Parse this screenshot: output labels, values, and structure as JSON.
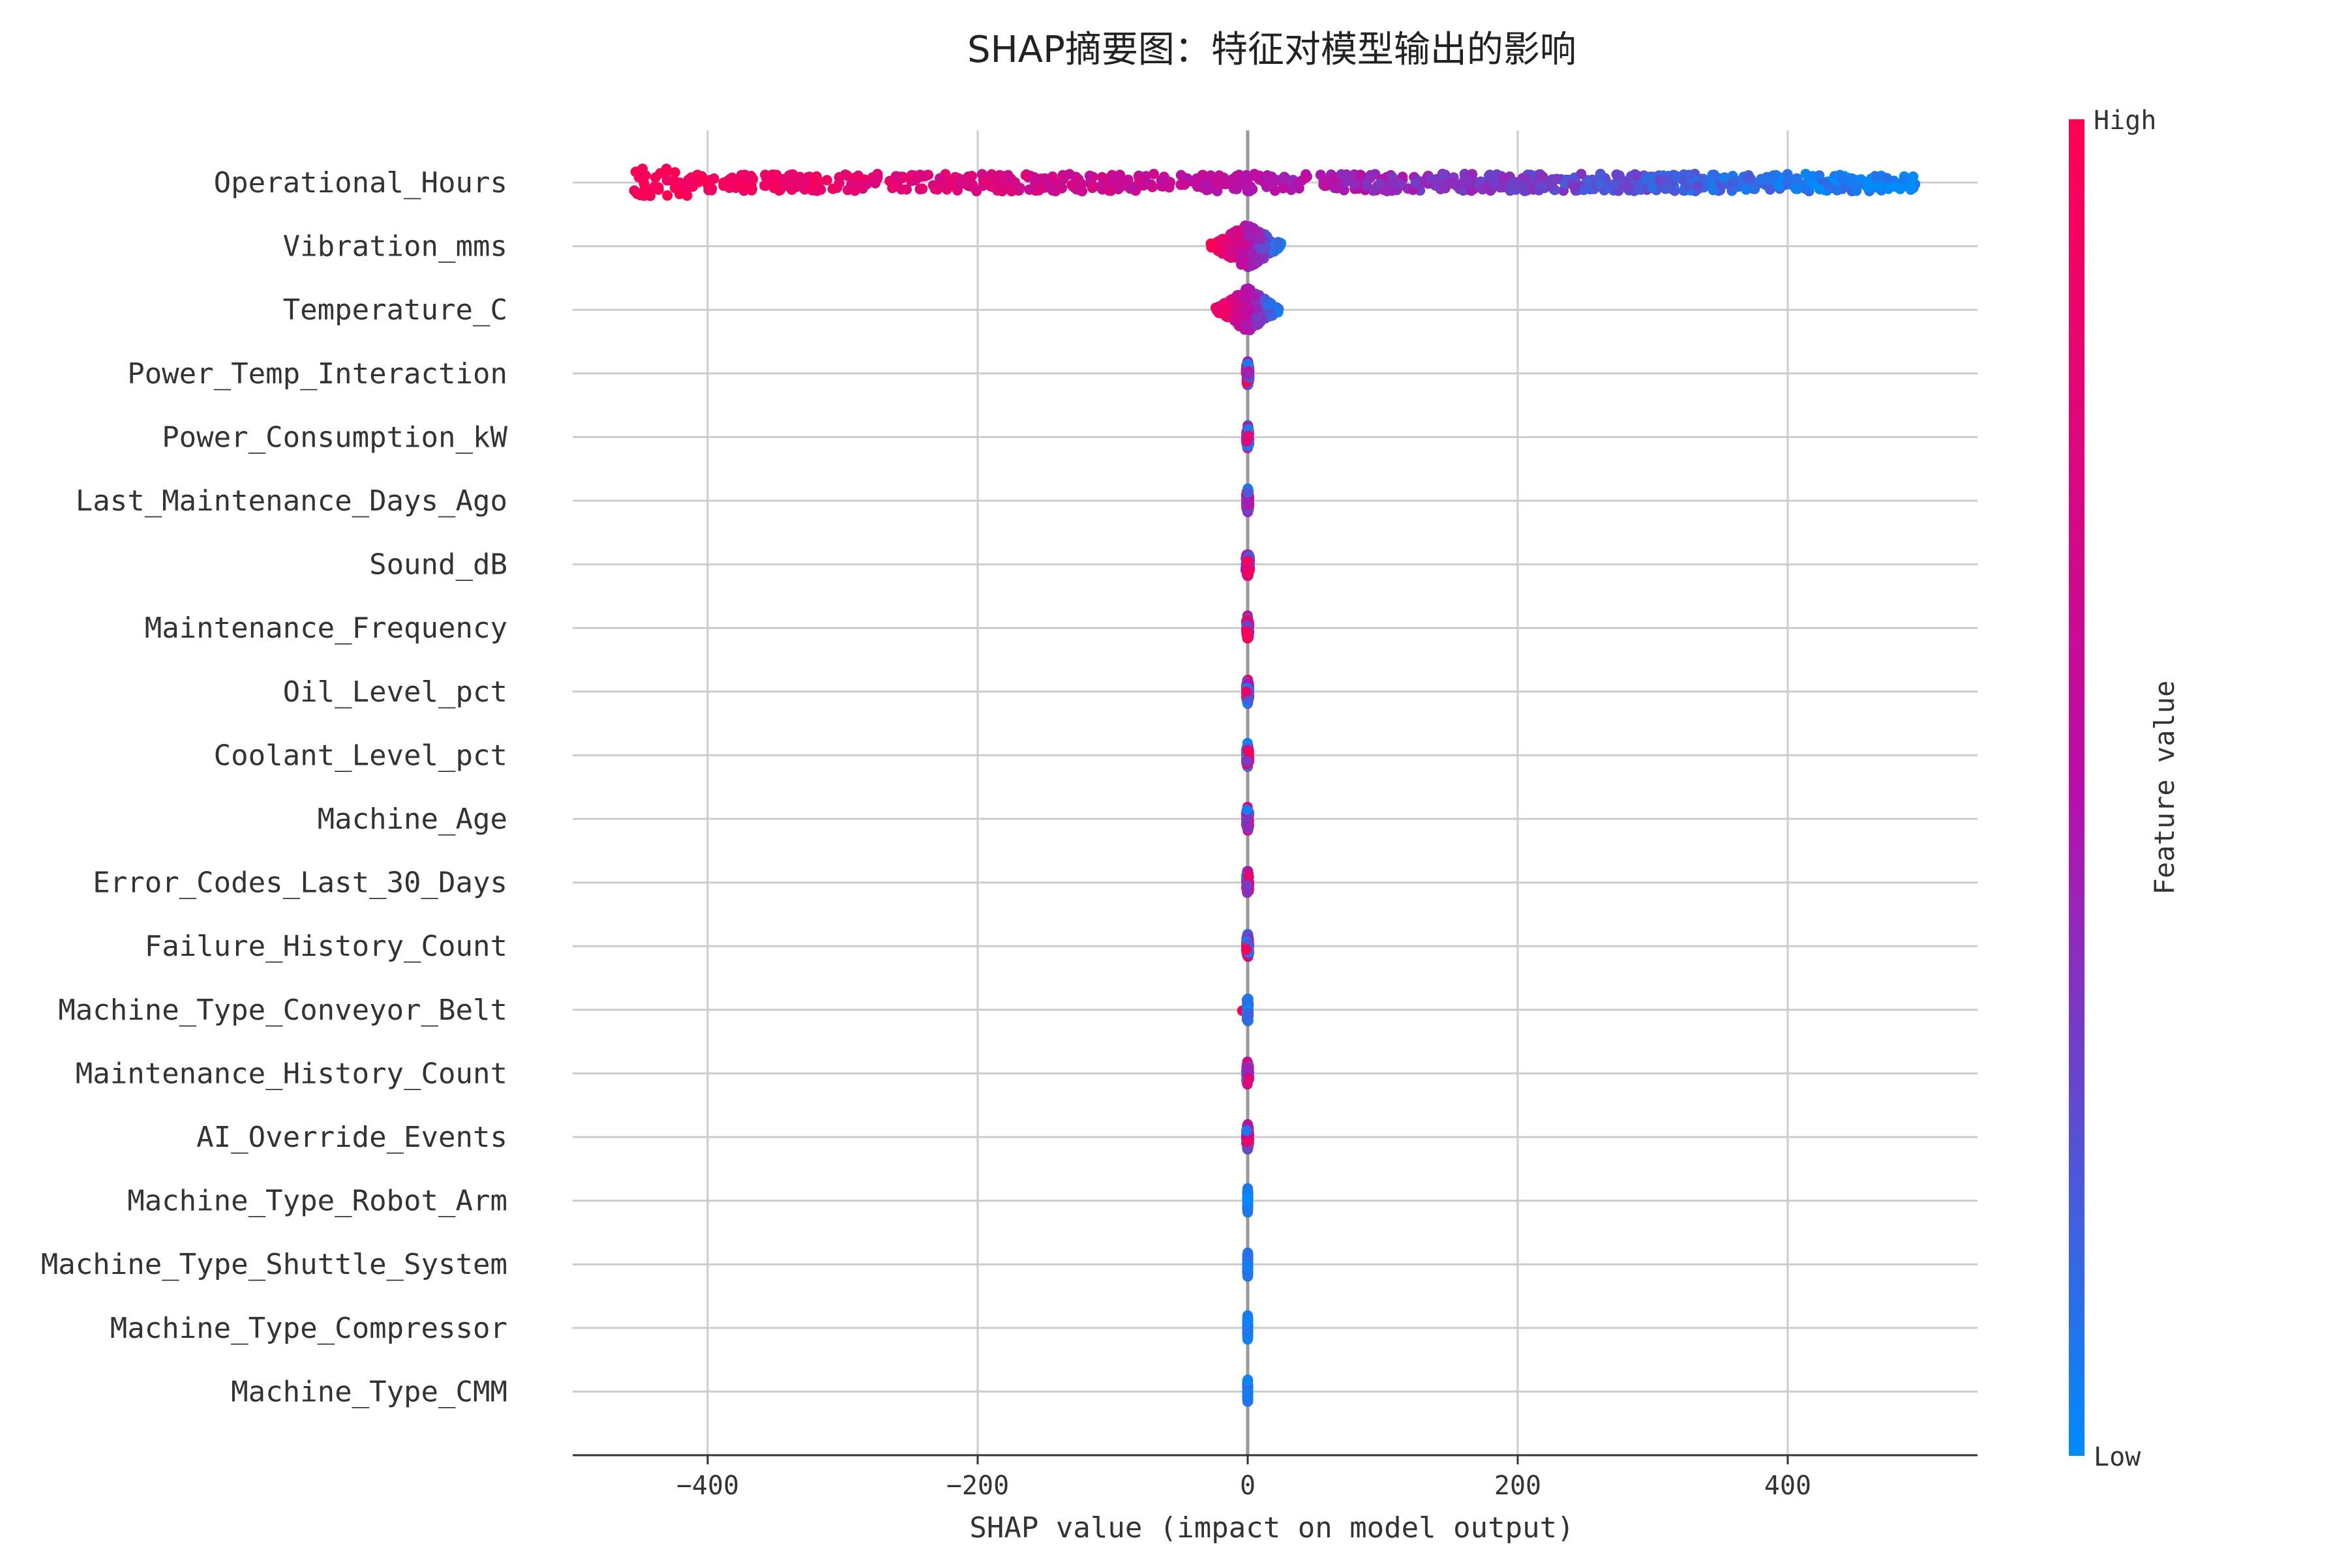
{
  "chart_data": {
    "type": "scatter",
    "subtype": "shap-beeswarm-summary",
    "title": "SHAP摘要图：特征对模型输出的影响",
    "xlabel": "SHAP value (impact on model output)",
    "xlim": [
      -500,
      540
    ],
    "xticks": [
      -400,
      -200,
      0,
      200,
      400
    ],
    "xtick_labels": [
      "−400",
      "−200",
      "0",
      "200",
      "400"
    ],
    "grid": "horizontal per feature, vertical at ticks",
    "colorbar": {
      "label": "Feature value",
      "high_label": "High",
      "low_label": "Low",
      "high_color": "#ff0052",
      "mid_color": "#b80fa8",
      "low_color": "#008bfb"
    },
    "features": [
      {
        "name": "Operational_Hours",
        "shap_min": -455,
        "shap_max": 495,
        "trend": "high_left",
        "spread": "wide"
      },
      {
        "name": "Vibration_mms",
        "shap_min": -28,
        "shap_max": 28,
        "trend": "high_left",
        "spread": "medium"
      },
      {
        "name": "Temperature_C",
        "shap_min": -25,
        "shap_max": 25,
        "trend": "high_left",
        "spread": "medium"
      },
      {
        "name": "Power_Temp_Interaction",
        "shap_min": -2,
        "shap_max": 3,
        "trend": "mixed",
        "spread": "narrow"
      },
      {
        "name": "Power_Consumption_kW",
        "shap_min": -2,
        "shap_max": 2,
        "trend": "mixed",
        "spread": "narrow"
      },
      {
        "name": "Last_Maintenance_Days_Ago",
        "shap_min": -2,
        "shap_max": 2,
        "trend": "mixed",
        "spread": "narrow"
      },
      {
        "name": "Sound_dB",
        "shap_min": -3,
        "shap_max": 3,
        "trend": "mixed",
        "spread": "narrow"
      },
      {
        "name": "Maintenance_Frequency",
        "shap_min": -2,
        "shap_max": 2,
        "trend": "mixed",
        "spread": "narrow"
      },
      {
        "name": "Oil_Level_pct",
        "shap_min": -2,
        "shap_max": 2,
        "trend": "mixed",
        "spread": "narrow"
      },
      {
        "name": "Coolant_Level_pct",
        "shap_min": -2,
        "shap_max": 2,
        "trend": "mixed",
        "spread": "narrow"
      },
      {
        "name": "Machine_Age",
        "shap_min": -2,
        "shap_max": 2,
        "trend": "mixed",
        "spread": "narrow"
      },
      {
        "name": "Error_Codes_Last_30_Days",
        "shap_min": -2,
        "shap_max": 2,
        "trend": "mixed",
        "spread": "narrow"
      },
      {
        "name": "Failure_History_Count",
        "shap_min": -2,
        "shap_max": 2,
        "trend": "mixed",
        "spread": "narrow"
      },
      {
        "name": "Machine_Type_Conveyor_Belt",
        "shap_min": -4,
        "shap_max": 1,
        "trend": "low_cluster",
        "spread": "narrow"
      },
      {
        "name": "Maintenance_History_Count",
        "shap_min": -2,
        "shap_max": 2,
        "trend": "mixed",
        "spread": "narrow"
      },
      {
        "name": "AI_Override_Events",
        "shap_min": -2,
        "shap_max": 2,
        "trend": "mixed",
        "spread": "narrow"
      },
      {
        "name": "Machine_Type_Robot_Arm",
        "shap_min": -1,
        "shap_max": 1,
        "trend": "low",
        "spread": "narrow"
      },
      {
        "name": "Machine_Type_Shuttle_System",
        "shap_min": -1,
        "shap_max": 1,
        "trend": "low",
        "spread": "narrow"
      },
      {
        "name": "Machine_Type_Compressor",
        "shap_min": -1,
        "shap_max": 1,
        "trend": "low",
        "spread": "narrow"
      },
      {
        "name": "Machine_Type_CMM",
        "shap_min": -1,
        "shap_max": 1,
        "trend": "low",
        "spread": "narrow"
      }
    ]
  }
}
